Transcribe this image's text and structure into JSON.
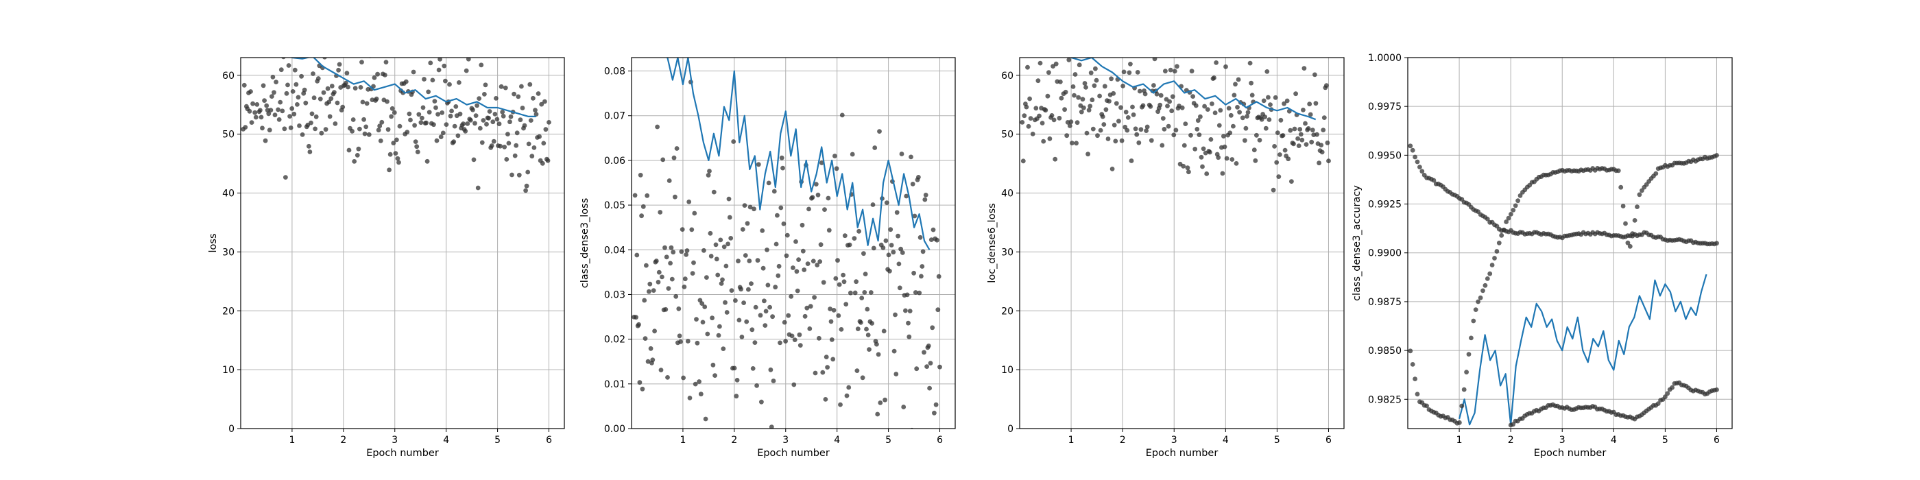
{
  "colors": {
    "line": "#1f77b4",
    "points": "#333333",
    "grid": "#b0b0b0"
  },
  "chart_data": [
    {
      "type": "scatter",
      "xlabel": "Epoch number",
      "ylabel": "loss",
      "xlim": [
        0.0,
        6.3
      ],
      "ylim": [
        0,
        63
      ],
      "xticks": [
        1,
        2,
        3,
        4,
        5,
        6
      ],
      "yticks": [
        0,
        10,
        20,
        30,
        40,
        50,
        60
      ],
      "ytick_labels": [
        "0",
        "10",
        "20",
        "30",
        "40",
        "50",
        "60"
      ],
      "grid": true,
      "series": [
        {
          "kind": "points",
          "x_start": 0.05,
          "x_end": 6.0,
          "count": 290,
          "base_start": 57.0,
          "base_end": 50.0,
          "spread": 7.5,
          "seed": 11
        },
        {
          "kind": "line",
          "x": [
            0.9,
            1.0,
            1.2,
            1.4,
            1.6,
            1.8,
            2.0,
            2.2,
            2.4,
            2.6,
            2.8,
            3.0,
            3.2,
            3.4,
            3.6,
            3.8,
            4.0,
            4.2,
            4.4,
            4.6,
            4.8,
            5.0,
            5.2,
            5.4,
            5.6,
            5.75
          ],
          "y": [
            63.5,
            63.0,
            62.8,
            63.2,
            61.5,
            60.5,
            59.5,
            58.5,
            59.0,
            57.5,
            58.0,
            58.5,
            57.0,
            57.5,
            56.0,
            56.5,
            55.5,
            56.0,
            55.0,
            55.5,
            54.5,
            54.5,
            54.0,
            53.5,
            53.0,
            53.0
          ]
        }
      ]
    },
    {
      "type": "scatter",
      "xlabel": "Epoch number",
      "ylabel": "class_dense3_loss",
      "xlim": [
        0.0,
        6.3
      ],
      "ylim": [
        0,
        0.083
      ],
      "xticks": [
        1,
        2,
        3,
        4,
        5,
        6
      ],
      "yticks": [
        0,
        0.01,
        0.02,
        0.03,
        0.04,
        0.05,
        0.06,
        0.07,
        0.08
      ],
      "ytick_labels": [
        "0.00",
        "0.01",
        "0.02",
        "0.03",
        "0.04",
        "0.05",
        "0.06",
        "0.07",
        "0.08"
      ],
      "grid": true,
      "series": [
        {
          "kind": "points",
          "x_start": 0.05,
          "x_end": 6.0,
          "count": 330,
          "base_start": 0.035,
          "base_end": 0.03,
          "spread": 0.024,
          "seed": 23
        },
        {
          "kind": "line",
          "x": [
            0.7,
            0.8,
            0.9,
            1.0,
            1.1,
            1.2,
            1.3,
            1.4,
            1.5,
            1.6,
            1.7,
            1.8,
            1.9,
            2.0,
            2.1,
            2.2,
            2.3,
            2.4,
            2.5,
            2.6,
            2.7,
            2.8,
            2.9,
            3.0,
            3.1,
            3.2,
            3.3,
            3.4,
            3.5,
            3.6,
            3.7,
            3.8,
            3.9,
            4.0,
            4.1,
            4.2,
            4.3,
            4.4,
            4.5,
            4.6,
            4.7,
            4.8,
            4.9,
            5.0,
            5.1,
            5.2,
            5.3,
            5.4,
            5.5,
            5.6,
            5.7,
            5.8
          ],
          "y": [
            0.083,
            0.078,
            0.083,
            0.077,
            0.083,
            0.075,
            0.07,
            0.064,
            0.06,
            0.066,
            0.061,
            0.072,
            0.069,
            0.08,
            0.064,
            0.07,
            0.058,
            0.061,
            0.049,
            0.057,
            0.062,
            0.054,
            0.066,
            0.071,
            0.061,
            0.067,
            0.054,
            0.06,
            0.053,
            0.057,
            0.063,
            0.055,
            0.06,
            0.052,
            0.057,
            0.049,
            0.055,
            0.045,
            0.049,
            0.041,
            0.047,
            0.042,
            0.055,
            0.06,
            0.055,
            0.05,
            0.057,
            0.052,
            0.045,
            0.048,
            0.042,
            0.04
          ]
        }
      ]
    },
    {
      "type": "scatter",
      "xlabel": "Epoch number",
      "ylabel": "loc_dense6_loss",
      "xlim": [
        0.0,
        6.3
      ],
      "ylim": [
        0,
        63
      ],
      "xticks": [
        1,
        2,
        3,
        4,
        5,
        6
      ],
      "yticks": [
        0,
        10,
        20,
        30,
        40,
        50,
        60
      ],
      "ytick_labels": [
        "0",
        "10",
        "20",
        "30",
        "40",
        "50",
        "60"
      ],
      "grid": true,
      "series": [
        {
          "kind": "points",
          "x_start": 0.05,
          "x_end": 6.0,
          "count": 290,
          "base_start": 56.5,
          "base_end": 50.0,
          "spread": 7.5,
          "seed": 37
        },
        {
          "kind": "line",
          "x": [
            1.0,
            1.2,
            1.4,
            1.6,
            1.8,
            2.0,
            2.2,
            2.4,
            2.6,
            2.8,
            3.0,
            3.2,
            3.4,
            3.6,
            3.8,
            4.0,
            4.2,
            4.4,
            4.6,
            4.8,
            5.0,
            5.2,
            5.4,
            5.6,
            5.75
          ],
          "y": [
            63.0,
            62.5,
            63.0,
            61.5,
            60.5,
            59.0,
            58.0,
            58.5,
            57.0,
            58.5,
            59.0,
            57.0,
            57.5,
            56.0,
            56.5,
            55.0,
            56.0,
            54.5,
            55.5,
            54.5,
            54.0,
            54.5,
            53.5,
            53.0,
            52.5
          ]
        }
      ]
    },
    {
      "type": "scatter",
      "xlabel": "Epoch number",
      "ylabel": "class_dense3_accuracy",
      "xlim": [
        0.0,
        6.3
      ],
      "ylim": [
        0.981,
        1.0
      ],
      "xticks": [
        1,
        2,
        3,
        4,
        5,
        6
      ],
      "yticks": [
        0.9825,
        0.985,
        0.9875,
        0.99,
        0.9925,
        0.995,
        0.9975,
        1.0
      ],
      "ytick_labels": [
        "0.9825",
        "0.9850",
        "0.9875",
        "0.9900",
        "0.9925",
        "0.9950",
        "0.9975",
        "1.0000"
      ],
      "grid": true,
      "series": [
        {
          "kind": "points",
          "x_start": 0.05,
          "x_end": 6.0,
          "count": 0,
          "seed": 41
        },
        {
          "kind": "line",
          "x": [
            1.0,
            1.1,
            1.2,
            1.3,
            1.4,
            1.5,
            1.6,
            1.7,
            1.8,
            1.9,
            2.0,
            2.1,
            2.2,
            2.3,
            2.4,
            2.5,
            2.6,
            2.7,
            2.8,
            2.9,
            3.0,
            3.1,
            3.2,
            3.3,
            3.4,
            3.5,
            3.6,
            3.7,
            3.8,
            3.9,
            4.0,
            4.1,
            4.2,
            4.3,
            4.4,
            4.5,
            4.6,
            4.7,
            4.8,
            4.9,
            5.0,
            5.1,
            5.2,
            5.3,
            5.4,
            5.5,
            5.6,
            5.7,
            5.8
          ],
          "y": [
            0.9815,
            0.9825,
            0.9812,
            0.9818,
            0.984,
            0.9858,
            0.9845,
            0.985,
            0.9832,
            0.9838,
            0.9812,
            0.9842,
            0.9855,
            0.9867,
            0.9862,
            0.9874,
            0.987,
            0.9862,
            0.9866,
            0.9855,
            0.985,
            0.9862,
            0.9856,
            0.9867,
            0.985,
            0.9844,
            0.9856,
            0.9852,
            0.986,
            0.9845,
            0.984,
            0.9855,
            0.9848,
            0.9862,
            0.9867,
            0.9878,
            0.9872,
            0.9866,
            0.9886,
            0.9878,
            0.9884,
            0.988,
            0.987,
            0.9875,
            0.9866,
            0.9872,
            0.9868,
            0.988,
            0.9889
          ]
        },
        {
          "kind": "curve",
          "points": [
            [
              0.05,
              0.9955
            ],
            [
              0.3,
              0.994
            ],
            [
              0.6,
              0.9935
            ],
            [
              0.9,
              0.993
            ],
            [
              1.0,
              0.9928
            ],
            [
              1.4,
              0.992
            ],
            [
              1.8,
              0.9912
            ],
            [
              2.2,
              0.991
            ],
            [
              2.6,
              0.991
            ],
            [
              3.0,
              0.9908
            ],
            [
              3.4,
              0.991
            ],
            [
              3.8,
              0.991
            ],
            [
              4.2,
              0.9908
            ],
            [
              4.6,
              0.991
            ],
            [
              5.0,
              0.9907
            ],
            [
              5.4,
              0.9906
            ],
            [
              5.8,
              0.9905
            ],
            [
              6.0,
              0.9905
            ]
          ]
        },
        {
          "kind": "curve",
          "points": [
            [
              0.05,
              0.985
            ],
            [
              0.2,
              0.9825
            ],
            [
              0.5,
              0.9818
            ],
            [
              0.8,
              0.9815
            ],
            [
              1.0,
              0.9812
            ],
            [
              1.3,
              0.987
            ],
            [
              1.6,
              0.989
            ],
            [
              1.9,
              0.9915
            ],
            [
              2.2,
              0.993
            ],
            [
              2.5,
              0.9938
            ],
            [
              2.9,
              0.9942
            ],
            [
              3.3,
              0.9942
            ],
            [
              3.7,
              0.9943
            ],
            [
              4.1,
              0.9942
            ],
            [
              4.3,
              0.99
            ],
            [
              4.5,
              0.993
            ],
            [
              4.9,
              0.9944
            ],
            [
              5.3,
              0.9946
            ],
            [
              5.7,
              0.9948
            ],
            [
              6.0,
              0.995
            ]
          ]
        },
        {
          "kind": "curve",
          "points": [
            [
              2.0,
              0.9812
            ],
            [
              2.4,
              0.9818
            ],
            [
              2.8,
              0.9822
            ],
            [
              3.2,
              0.982
            ],
            [
              3.6,
              0.9821
            ],
            [
              4.0,
              0.9818
            ],
            [
              4.4,
              0.9815
            ],
            [
              4.8,
              0.9822
            ],
            [
              5.0,
              0.9826
            ],
            [
              5.2,
              0.9834
            ],
            [
              5.5,
              0.983
            ],
            [
              5.8,
              0.9828
            ],
            [
              6.0,
              0.983
            ]
          ]
        }
      ]
    }
  ]
}
